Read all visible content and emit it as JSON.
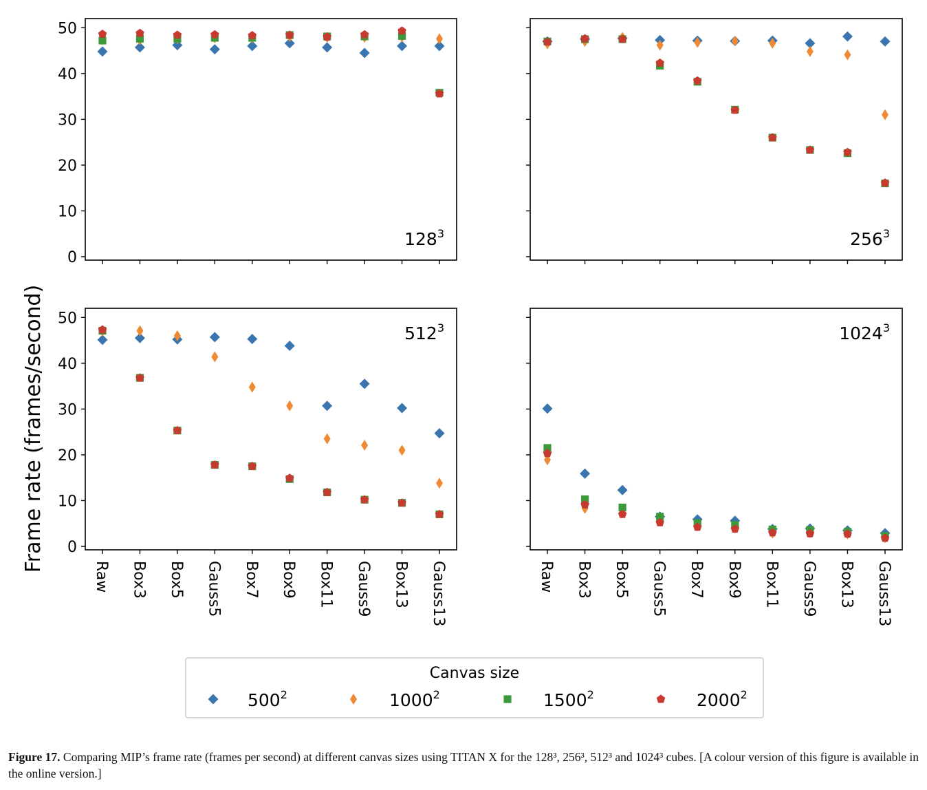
{
  "chart_data": {
    "type": "scatter",
    "ylabel": "Frame rate (frames/second)",
    "ylim": [
      0,
      52
    ],
    "yticks": [
      0,
      10,
      20,
      30,
      40,
      50
    ],
    "categories": [
      "Raw",
      "Box3",
      "Box5",
      "Gauss5",
      "Box7",
      "Box9",
      "Box11",
      "Gauss9",
      "Box13",
      "Gauss13"
    ],
    "legend": {
      "title": "Canvas size",
      "placement": "bottom-center",
      "entries": [
        {
          "base": "500",
          "sup": "2",
          "color": "#3a75b0",
          "marker": "diamond"
        },
        {
          "base": "1000",
          "sup": "2",
          "color": "#ef8a34",
          "marker": "thin-diamond"
        },
        {
          "base": "1500",
          "sup": "2",
          "color": "#3d9a3a",
          "marker": "square"
        },
        {
          "base": "2000",
          "sup": "2",
          "color": "#c73a2f",
          "marker": "pentagon"
        }
      ]
    },
    "panels": [
      {
        "label_base": "128",
        "label_sup": "3",
        "label_placement": "bottom-right",
        "series": [
          {
            "values": [
              44.8,
              45.7,
              46.2,
              45.3,
              46.0,
              46.6,
              45.7,
              44.5,
              46.0,
              46.0
            ]
          },
          {
            "values": [
              47.4,
              47.4,
              47.6,
              47.8,
              47.8,
              48.1,
              47.9,
              47.9,
              48.0,
              47.6
            ]
          },
          {
            "values": [
              47.2,
              47.6,
              47.6,
              47.8,
              47.8,
              48.4,
              48.1,
              48.1,
              48.2,
              35.8
            ]
          },
          {
            "values": [
              48.6,
              48.8,
              48.4,
              48.5,
              48.3,
              48.4,
              48.0,
              48.5,
              49.3,
              35.6
            ]
          }
        ]
      },
      {
        "label_base": "256",
        "label_sup": "3",
        "label_placement": "bottom-right",
        "series": [
          {
            "values": [
              47.0,
              47.5,
              47.7,
              47.3,
              47.2,
              47.1,
              47.2,
              46.6,
              48.1,
              47.0
            ]
          },
          {
            "values": [
              46.5,
              47.0,
              47.9,
              46.2,
              46.8,
              47.1,
              46.6,
              44.8,
              44.1,
              31.0
            ]
          },
          {
            "values": [
              47.0,
              47.5,
              47.5,
              41.7,
              38.2,
              32.1,
              26.0,
              23.3,
              22.6,
              16.0
            ]
          },
          {
            "values": [
              46.9,
              47.6,
              47.5,
              42.3,
              38.4,
              32.0,
              26.0,
              23.3,
              22.8,
              16.1
            ]
          }
        ]
      },
      {
        "label_base": "512",
        "label_sup": "3",
        "label_placement": "top-right",
        "series": [
          {
            "values": [
              45.1,
              45.5,
              45.2,
              45.7,
              45.3,
              43.8,
              30.7,
              35.5,
              30.2,
              24.7
            ]
          },
          {
            "values": [
              47.0,
              47.1,
              46.0,
              41.4,
              34.8,
              30.7,
              23.5,
              22.1,
              21.0,
              13.8
            ]
          },
          {
            "values": [
              47.1,
              36.8,
              25.3,
              17.8,
              17.5,
              14.7,
              11.8,
              10.2,
              9.5,
              7.0
            ]
          },
          {
            "values": [
              47.3,
              36.8,
              25.3,
              17.8,
              17.5,
              14.9,
              11.8,
              10.2,
              9.5,
              7.0
            ]
          }
        ]
      },
      {
        "label_base": "1024",
        "label_sup": "3",
        "label_placement": "top-right",
        "series": [
          {
            "values": [
              30.1,
              15.9,
              12.3,
              6.5,
              5.9,
              5.6,
              3.8,
              3.9,
              3.5,
              2.9
            ]
          },
          {
            "values": [
              18.9,
              8.3,
              7.7,
              5.9,
              4.7,
              4.0,
              2.9,
              3.0,
              2.7,
              1.9
            ]
          },
          {
            "values": [
              21.5,
              10.3,
              8.5,
              6.5,
              5.1,
              4.7,
              3.7,
              3.6,
              3.2,
              2.3
            ]
          },
          {
            "values": [
              20.3,
              9.1,
              7.0,
              5.2,
              4.2,
              3.8,
              3.0,
              2.8,
              2.7,
              1.8
            ]
          }
        ]
      }
    ]
  },
  "caption": {
    "figure_label": "Figure 17.",
    "text": "Comparing MIP’s frame rate (frames per second) at different canvas sizes using TITAN X for the 128³, 256³, 512³ and 1024³ cubes. [A colour version of this figure is available in the online version.]"
  }
}
